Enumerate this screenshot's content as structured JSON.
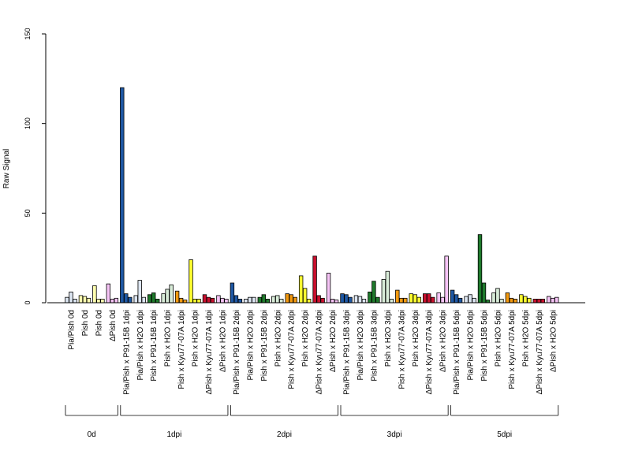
{
  "chart_data": {
    "type": "bar",
    "ylabel": "Raw Signal",
    "ylim": [
      0,
      150
    ],
    "yticks": [
      0,
      50,
      100,
      150
    ],
    "categories": [
      "Pia/Pish 0d",
      "Pish 0d",
      "Pish 0d",
      "ΔPish 0d",
      "Pia/Pish x P91-15B 1dpi",
      "Pia/Pish x H2O 1dpi",
      "Pish x P91-15B 1dpi",
      "Pish x H2O 1dpi",
      "Pish x Kyu77-07A 1dpi",
      "Pish x H2O 1dpi",
      "ΔPish x Kyu77-07A 1dpi",
      "ΔPish x H2O 1dpi",
      "Pia/Pish x P91-15B 2dpi",
      "Pia/Pish x H2O 2dpi",
      "Pish x P91-15B 2dpi",
      "Pish x H2O 2dpi",
      "Pish x Kyu77-07A 2dpi",
      "Pish x H2O 2dpi",
      "ΔPish x Kyu77-07A 2dpi",
      "ΔPish x H2O 2dpi",
      "Pia/Pish x P91-15B 3dpi",
      "Pia/Pish x H2O 3dpi",
      "Pish x P91-15B 3dpi",
      "Pish x H2O 3dpi",
      "Pish x Kyu77-07A 3dpi",
      "Pish x H2O 3dpi",
      "ΔPish x Kyu77-07A 3dpi",
      "ΔPish x H2O 3dpi",
      "Pia/Pish x P91-15B 5dpi",
      "Pia/Pish x H2O 5dpi",
      "Pish x P91-15B 5dpi",
      "Pish x H2O 5dpi",
      "Pish x Kyu77-07A 5dpi",
      "Pish x H2O 5dpi",
      "ΔPish x Kyu77-07A 5dpi",
      "ΔPish x H2O 5dpi"
    ],
    "colors": [
      "#dde6f2",
      "#ffffb0",
      "#ffffb0",
      "#f6c4f6",
      "#1f58a4",
      "#dde6f2",
      "#1f7a2c",
      "#d8ecd8",
      "#f39a10",
      "#ffff30",
      "#c8102e",
      "#f6c4f6",
      "#1f58a4",
      "#dde6f2",
      "#1f7a2c",
      "#d8ecd8",
      "#f39a10",
      "#ffff30",
      "#c8102e",
      "#f6c4f6",
      "#1f58a4",
      "#dde6f2",
      "#1f7a2c",
      "#d8ecd8",
      "#f39a10",
      "#ffff30",
      "#c8102e",
      "#f6c4f6",
      "#1f58a4",
      "#dde6f2",
      "#1f7a2c",
      "#d8ecd8",
      "#f39a10",
      "#ffff30",
      "#c8102e",
      "#f6c4f6"
    ],
    "values": [
      [
        3,
        6,
        2
      ],
      [
        4,
        3.5,
        2.5
      ],
      [
        9.5,
        2,
        2
      ],
      [
        10.5,
        2,
        2.5
      ],
      [
        120,
        5,
        3
      ],
      [
        4,
        12.5,
        3
      ],
      [
        4.5,
        5.5,
        2
      ],
      [
        5,
        7.5,
        10
      ],
      [
        6.5,
        2.5,
        1.5
      ],
      [
        24,
        2,
        2
      ],
      [
        4.5,
        3,
        2.5
      ],
      [
        4,
        2.5,
        2
      ],
      [
        11,
        4,
        2
      ],
      [
        2,
        3,
        3
      ],
      [
        3,
        4.5,
        2
      ],
      [
        3.5,
        4,
        2
      ],
      [
        5,
        4.5,
        3
      ],
      [
        15,
        8,
        2
      ],
      [
        26,
        4,
        2.5
      ],
      [
        16.5,
        2,
        1.5
      ],
      [
        5,
        4.5,
        3
      ],
      [
        4,
        3.5,
        2
      ],
      [
        6,
        12,
        3
      ],
      [
        13,
        17.5,
        2
      ],
      [
        7,
        2.5,
        2.5
      ],
      [
        5,
        4.5,
        3
      ],
      [
        5,
        5,
        3
      ],
      [
        5.5,
        3,
        26
      ],
      [
        7,
        4.5,
        2.5
      ],
      [
        3.5,
        4.5,
        2.5
      ],
      [
        38,
        11,
        1.5
      ],
      [
        5.5,
        8,
        2
      ],
      [
        5.5,
        2.5,
        2
      ],
      [
        4.5,
        3.5,
        2.5
      ],
      [
        2,
        2,
        2
      ],
      [
        3.5,
        2.5,
        3
      ]
    ],
    "groups": [
      {
        "label": "0d",
        "start": 0,
        "end": 3
      },
      {
        "label": "1dpi",
        "start": 4,
        "end": 11
      },
      {
        "label": "2dpi",
        "start": 12,
        "end": 19
      },
      {
        "label": "3dpi",
        "start": 20,
        "end": 27
      },
      {
        "label": "5dpi",
        "start": 28,
        "end": 35
      }
    ],
    "grid": false,
    "legend": "none"
  }
}
